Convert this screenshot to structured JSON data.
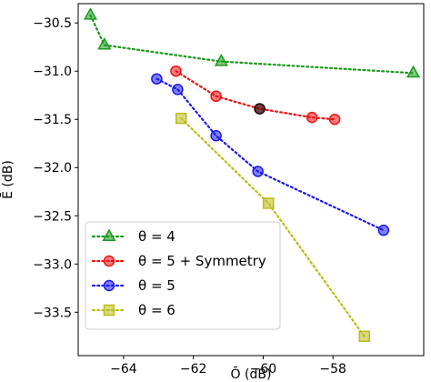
{
  "chart_data": {
    "type": "scatter",
    "xlabel": "Ō (dB)",
    "ylabel": "Ē (dB)",
    "xlim": [
      -65.3,
      -55.4
    ],
    "ylim": [
      -33.95,
      -30.3
    ],
    "xticks": [
      -64,
      -62,
      -60,
      -58
    ],
    "xtick_labels": [
      "−64",
      "−62",
      "−60",
      "−58"
    ],
    "yticks": [
      -30.5,
      -31.0,
      -31.5,
      -32.0,
      -32.5,
      -33.0,
      -33.5
    ],
    "ytick_labels": [
      "−30.5",
      "−31.0",
      "−31.5",
      "−32.0",
      "−32.5",
      "−33.0",
      "−33.5"
    ],
    "grid": false,
    "legend_position": "lower-left",
    "series": [
      {
        "name": "θ = 4",
        "color": "#1a9a1a",
        "marker": "triangle",
        "line": "dotted",
        "x": [
          -64.95,
          -64.55,
          -61.2,
          -55.7
        ],
        "y": [
          -30.42,
          -30.73,
          -30.9,
          -31.02
        ]
      },
      {
        "name": "θ = 5 + Symmetry",
        "color": "#ee1111",
        "marker": "circle",
        "line": "dotted",
        "x": [
          -62.5,
          -61.35,
          -60.1,
          -58.6,
          -57.95
        ],
        "y": [
          -31.0,
          -31.26,
          -31.39,
          -31.48,
          -31.5
        ]
      },
      {
        "name": "θ = 5",
        "color": "#1a1aee",
        "marker": "circle",
        "line": "dotted",
        "x": [
          -63.05,
          -62.45,
          -61.35,
          -60.15,
          -56.55
        ],
        "y": [
          -31.08,
          -31.19,
          -31.67,
          -32.04,
          -32.65
        ]
      },
      {
        "name": "θ = 6",
        "color": "#bcbc1a",
        "marker": "square",
        "line": "dotted",
        "x": [
          -62.35,
          -59.85,
          -57.1
        ],
        "y": [
          -31.49,
          -32.37,
          -33.75
        ]
      }
    ],
    "special_points": [
      {
        "x": -60.1,
        "y": -31.39,
        "color": "#111111",
        "marker": "circle"
      }
    ]
  }
}
